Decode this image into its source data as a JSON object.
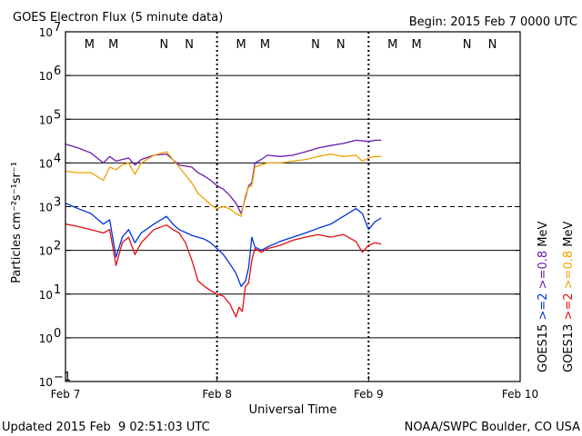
{
  "colors": {
    "goes15_low": "#0033dd",
    "goes13_low": "#e01010",
    "goes15_high": "#6a1ab0",
    "goes13_high": "#f0a000",
    "frame": "#000000"
  },
  "chart_data": {
    "type": "line",
    "title": "GOES Electron Flux (5 minute data)",
    "begin_label": "Begin: 2015 Feb 7 0000 UTC",
    "xlabel": "Universal Time",
    "ylabel": "Particles cm⁻²s⁻¹sr⁻¹",
    "y_scale": "log",
    "ylim": [
      0.1,
      10000000
    ],
    "xlim_hours": [
      0,
      72
    ],
    "x_ticks": [
      {
        "hour": 0,
        "label": "Feb 7"
      },
      {
        "hour": 24,
        "label": "Feb 8"
      },
      {
        "hour": 48,
        "label": "Feb 9"
      },
      {
        "hour": 72,
        "label": "Feb 10"
      }
    ],
    "y_ticks": [
      {
        "exp": 7,
        "label": "7"
      },
      {
        "exp": 6,
        "label": "6"
      },
      {
        "exp": 5,
        "label": "5"
      },
      {
        "exp": 4,
        "label": "4"
      },
      {
        "exp": 3,
        "label": "3"
      },
      {
        "exp": 2,
        "label": "2"
      },
      {
        "exp": 1,
        "label": "1"
      },
      {
        "exp": 0,
        "label": "0"
      },
      {
        "exp": -1,
        "label": "−1"
      }
    ],
    "tick_base": "10",
    "threshold_line": 1000,
    "markers": [
      {
        "hour": 3.8,
        "label": "M",
        "sat": "GOES13"
      },
      {
        "hour": 7.6,
        "label": "M",
        "sat": "GOES15"
      },
      {
        "hour": 15.6,
        "label": "N",
        "sat": "GOES13"
      },
      {
        "hour": 19.6,
        "label": "N",
        "sat": "GOES15"
      },
      {
        "hour": 27.8,
        "label": "M",
        "sat": "GOES13"
      },
      {
        "hour": 31.6,
        "label": "M",
        "sat": "GOES15"
      },
      {
        "hour": 39.6,
        "label": "N",
        "sat": "GOES13"
      },
      {
        "hour": 43.6,
        "label": "N",
        "sat": "GOES15"
      },
      {
        "hour": 51.8,
        "label": "M",
        "sat": "GOES13"
      },
      {
        "hour": 55.6,
        "label": "M",
        "sat": "GOES15"
      },
      {
        "hour": 63.6,
        "label": "N",
        "sat": "GOES13"
      },
      {
        "hour": 67.6,
        "label": "N",
        "sat": "GOES15"
      }
    ],
    "series": [
      {
        "name": ">=0.8 MeV GOES15",
        "color_key": "goes15_high",
        "x": [
          0,
          2,
          4,
          6,
          7,
          8,
          9,
          10,
          11,
          12,
          14,
          16,
          17,
          18,
          20,
          21,
          22,
          23,
          24,
          25,
          26,
          27,
          27.8,
          28.5,
          29,
          29.5,
          30,
          31,
          32,
          34,
          36,
          38,
          40,
          42,
          44,
          46,
          48,
          49,
          50
        ],
        "y": [
          27000,
          22000,
          17000,
          10000,
          14000,
          11000,
          12000,
          13000,
          9000,
          12000,
          15000,
          16000,
          12000,
          9000,
          8000,
          6000,
          5000,
          4000,
          3000,
          2500,
          1800,
          1200,
          700,
          1600,
          3000,
          3500,
          10000,
          12000,
          15000,
          14000,
          15000,
          18000,
          22000,
          25000,
          28000,
          33000,
          31000,
          33000,
          33000
        ]
      },
      {
        "name": ">=0.8 MeV GOES13",
        "color_key": "goes13_high",
        "x": [
          0,
          2,
          4,
          6,
          7,
          8,
          9,
          10,
          11,
          12,
          14,
          16,
          17,
          18,
          20,
          21,
          22,
          23,
          24,
          25,
          26,
          27,
          27.8,
          28.5,
          29,
          29.5,
          30,
          31,
          32,
          34,
          36,
          38,
          40,
          42,
          44,
          46,
          47,
          48,
          49,
          50
        ],
        "y": [
          6500,
          6000,
          6000,
          4000,
          8000,
          7000,
          9000,
          10000,
          5500,
          10000,
          15000,
          18000,
          12000,
          8000,
          3500,
          2000,
          1500,
          1100,
          900,
          1000,
          900,
          700,
          600,
          1800,
          2800,
          3000,
          8000,
          9000,
          10000,
          10000,
          11000,
          12000,
          14000,
          16000,
          14000,
          15000,
          11000,
          13000,
          14000,
          14000
        ]
      },
      {
        "name": ">=2 MeV GOES15",
        "color_key": "goes15_low",
        "x": [
          0,
          2,
          4,
          6,
          7,
          8,
          9,
          10,
          11,
          12,
          14,
          16,
          17,
          18,
          20,
          21,
          22,
          23,
          24,
          25,
          26,
          27,
          27.8,
          28.5,
          29,
          29.5,
          30,
          31,
          32,
          34,
          36,
          38,
          40,
          42,
          44,
          46,
          47,
          48,
          49,
          50
        ],
        "y": [
          1200,
          900,
          700,
          400,
          500,
          70,
          200,
          300,
          150,
          250,
          400,
          600,
          400,
          300,
          220,
          200,
          180,
          150,
          110,
          80,
          50,
          30,
          15,
          20,
          40,
          200,
          120,
          100,
          120,
          160,
          200,
          250,
          320,
          400,
          600,
          900,
          700,
          300,
          450,
          550
        ]
      },
      {
        "name": ">=2 MeV GOES13",
        "color_key": "goes13_low",
        "x": [
          0,
          2,
          4,
          6,
          7,
          8,
          9,
          10,
          11,
          12,
          14,
          16,
          17,
          18,
          19,
          20,
          21,
          22,
          23,
          24,
          25,
          26,
          27,
          27.5,
          28,
          28.5,
          29,
          29.5,
          30,
          31,
          32,
          34,
          36,
          38,
          40,
          42,
          44,
          46,
          47,
          48,
          49,
          50
        ],
        "y": [
          400,
          350,
          300,
          250,
          300,
          45,
          150,
          200,
          80,
          150,
          300,
          380,
          300,
          250,
          150,
          60,
          20,
          15,
          12,
          10,
          9,
          6,
          3,
          5,
          4,
          15,
          18,
          60,
          110,
          90,
          110,
          130,
          170,
          200,
          230,
          200,
          230,
          160,
          90,
          130,
          150,
          140
        ]
      }
    ],
    "legend": {
      "row1": [
        {
          "text": "GOES15",
          "color_key": "frame"
        },
        {
          "text": ">=2",
          "color_key": "goes15_low"
        },
        {
          "text": ">=0.8",
          "color_key": "goes15_high"
        },
        {
          "text": "MeV",
          "color_key": "frame"
        }
      ],
      "row2": [
        {
          "text": "GOES13",
          "color_key": "frame"
        },
        {
          "text": ">=2",
          "color_key": "goes13_low"
        },
        {
          "text": ">=0.8",
          "color_key": "goes13_high"
        },
        {
          "text": "MeV",
          "color_key": "frame"
        }
      ]
    },
    "footer_left": "Updated 2015 Feb  9 02:51:03 UTC",
    "footer_right": "NOAA/SWPC Boulder, CO USA"
  }
}
